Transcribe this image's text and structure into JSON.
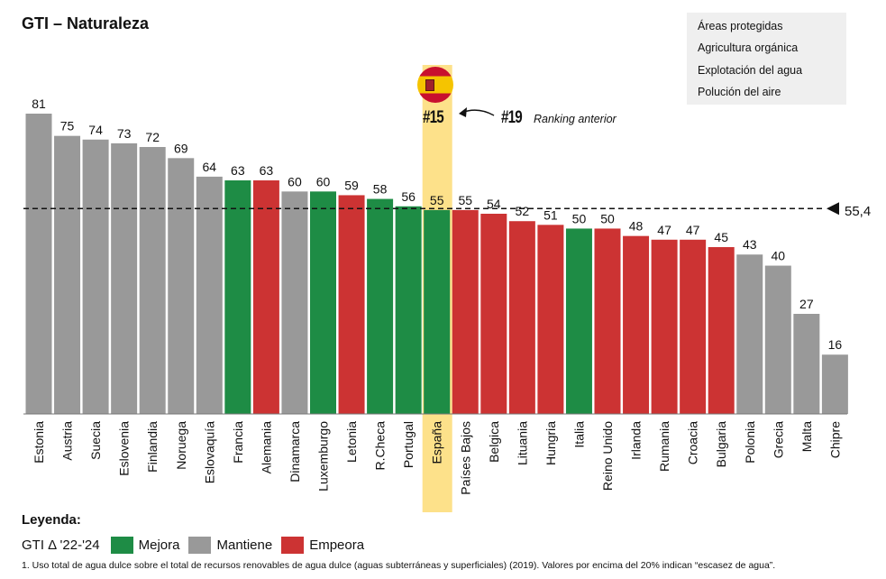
{
  "title": "GTI – Naturaleza",
  "topics": [
    "Áreas protegidas",
    "Agricultura orgánica",
    "Explotación del agua",
    "Polución del aire"
  ],
  "highlight": {
    "country": "España",
    "current_rank": "#15",
    "previous_rank": "#19",
    "previous_rank_label": "Ranking anterior",
    "flag_icon": "spain-flag-icon"
  },
  "average": {
    "value": 55.4,
    "label": "55,4"
  },
  "colors": {
    "Mejora": "#1e8c45",
    "Mantiene": "#999999",
    "Empeora": "#cc3333",
    "highlight": "#fde18a"
  },
  "legend": {
    "title": "Leyenda:",
    "prefix": "GTI Δ '22-'24",
    "items": [
      {
        "label": "Mejora",
        "key": "Mejora"
      },
      {
        "label": "Mantiene",
        "key": "Mantiene"
      },
      {
        "label": "Empeora",
        "key": "Empeora"
      }
    ]
  },
  "footnote": "1. Uso total de agua dulce sobre el total de recursos renovables de agua dulce (aguas subterráneas y superficiales) (2019). Valores por encima del 20% indican “escasez de agua”.",
  "chart_data": {
    "type": "bar",
    "title": "GTI – Naturaleza",
    "ylim": [
      0,
      81
    ],
    "grid": false,
    "reference_line": 55.4,
    "categories": [
      "Estonia",
      "Austria",
      "Suecia",
      "Eslovenia",
      "Finlandia",
      "Noruega",
      "Eslovaquía",
      "Francia",
      "Alemania",
      "Dinamarca",
      "Luxemburgo",
      "Letonia",
      "R.Checa",
      "Portugal",
      "España",
      "Países Bajos",
      "Belgica",
      "Lituania",
      "Hungria",
      "Italia",
      "Reino Unido",
      "Irlanda",
      "Rumania",
      "Croacia",
      "Bulgaria",
      "Polonia",
      "Grecia",
      "Malta",
      "Chipre"
    ],
    "values": [
      81,
      75,
      74,
      73,
      72,
      69,
      64,
      63,
      63,
      60,
      60,
      59,
      58,
      56,
      55,
      55,
      54,
      52,
      51,
      50,
      50,
      48,
      47,
      47,
      45,
      43,
      40,
      27,
      16
    ],
    "status": [
      "Mantiene",
      "Mantiene",
      "Mantiene",
      "Mantiene",
      "Mantiene",
      "Mantiene",
      "Mantiene",
      "Mejora",
      "Empeora",
      "Mantiene",
      "Mejora",
      "Empeora",
      "Mejora",
      "Mejora",
      "Mejora",
      "Empeora",
      "Empeora",
      "Empeora",
      "Empeora",
      "Mejora",
      "Empeora",
      "Empeora",
      "Empeora",
      "Empeora",
      "Empeora",
      "Mantiene",
      "Mantiene",
      "Mantiene",
      "Mantiene"
    ]
  }
}
